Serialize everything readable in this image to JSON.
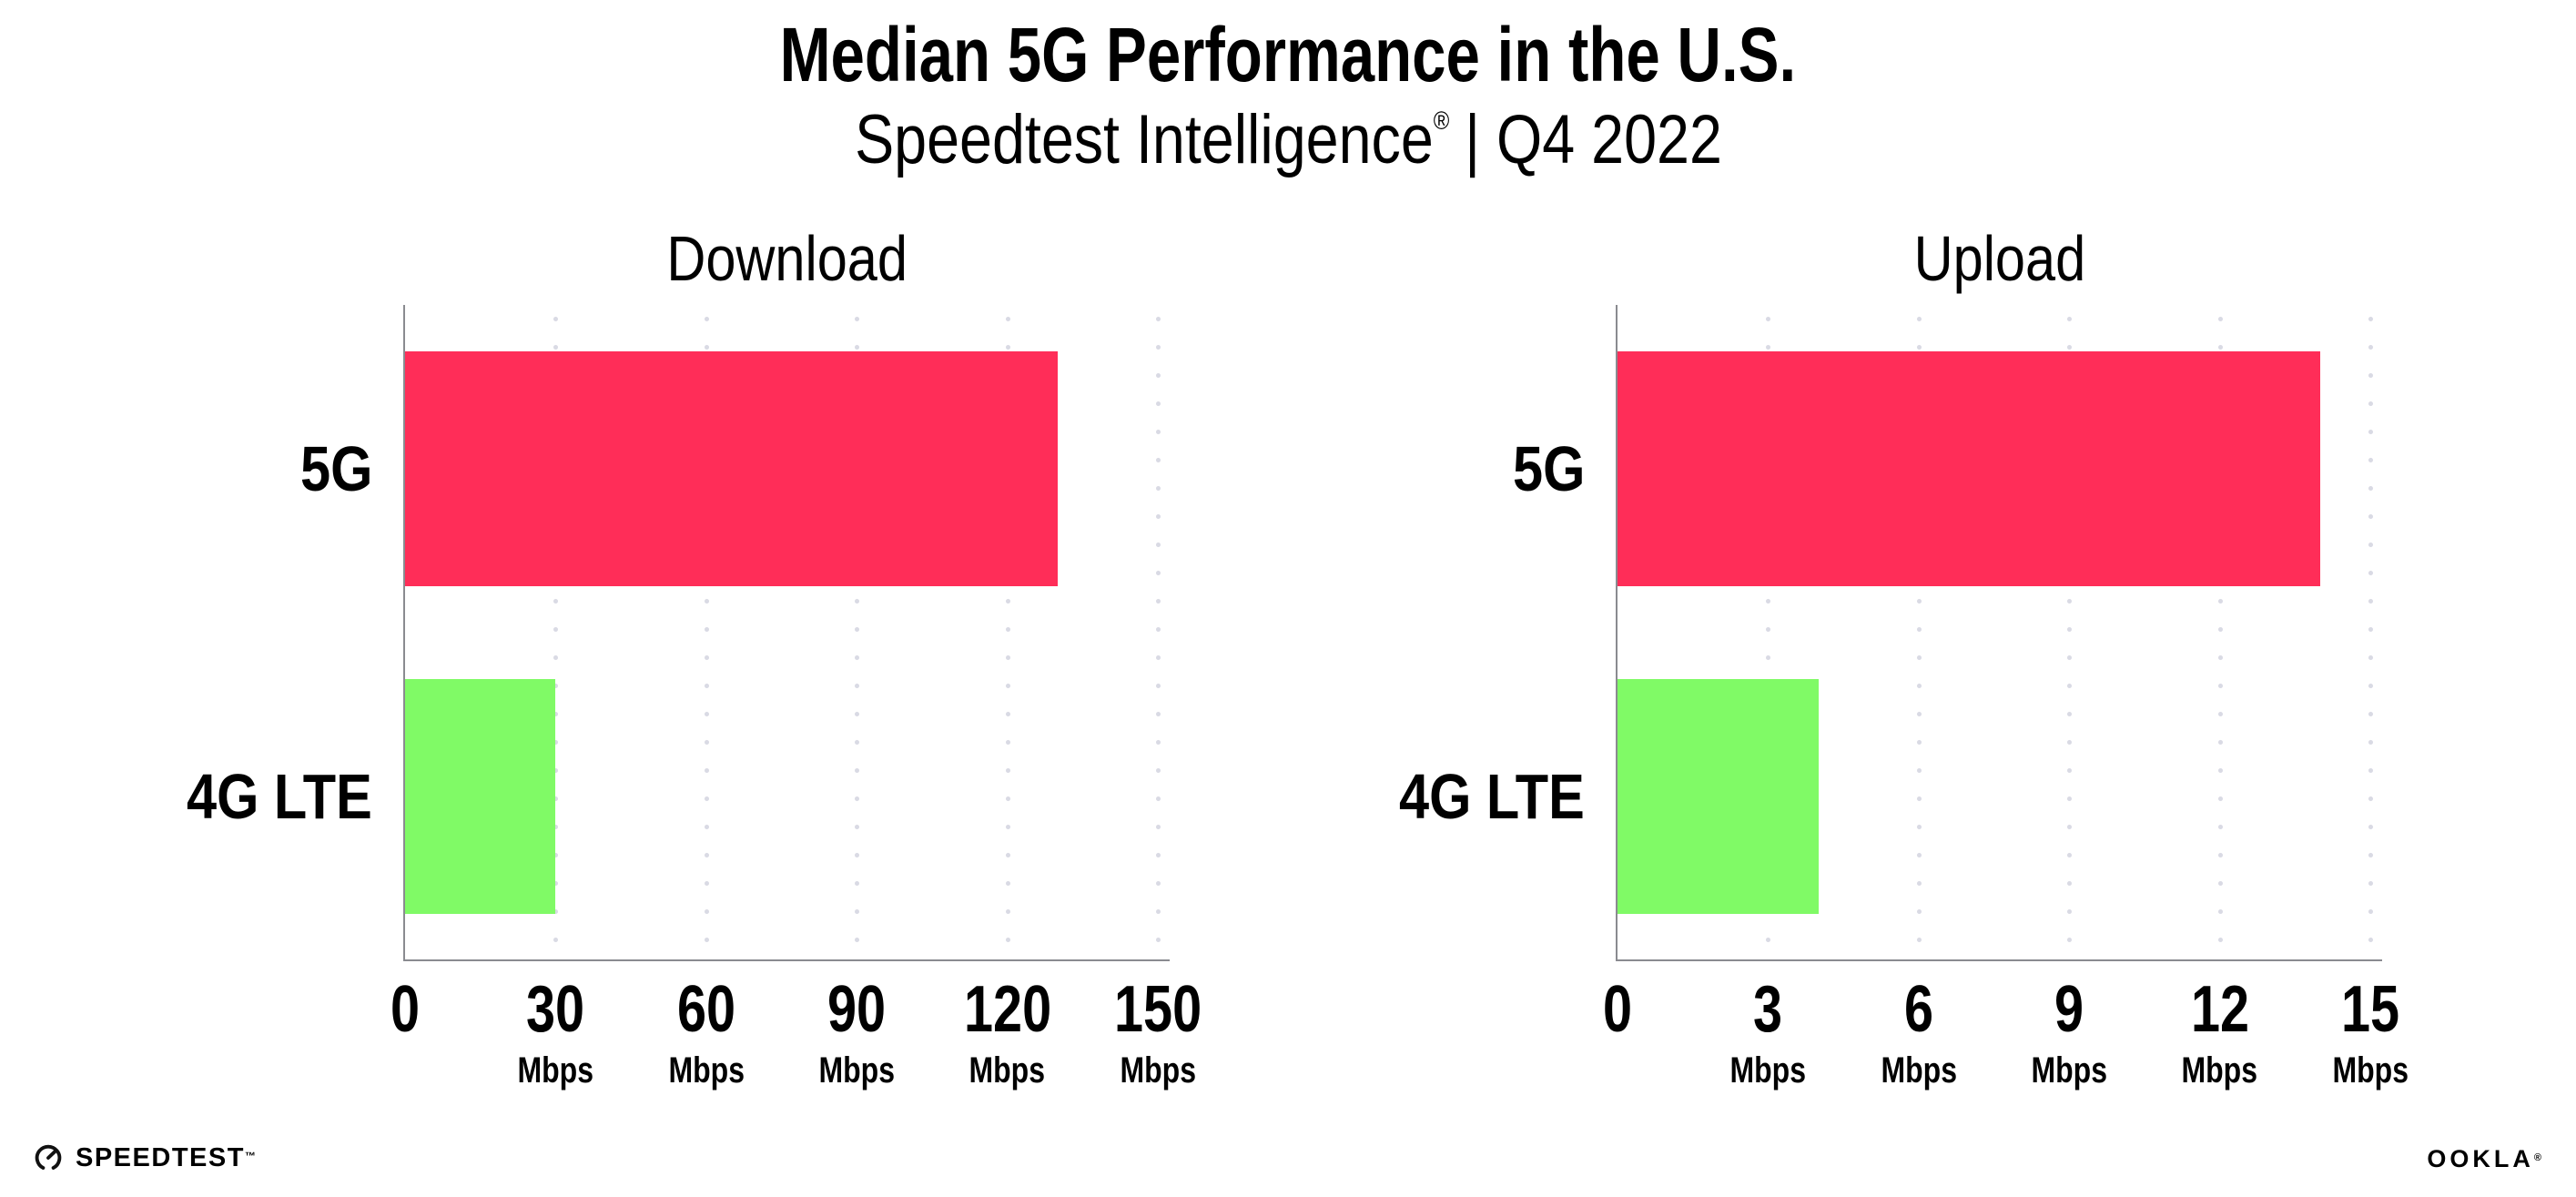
{
  "header": {
    "title": "Median 5G Performance in the U.S.",
    "subtitle_brand": "Speedtest Intelligence",
    "subtitle_reg": "®",
    "subtitle_rest": "| Q4 2022"
  },
  "chart_data": [
    {
      "type": "bar",
      "orientation": "horizontal",
      "title": "Download",
      "categories": [
        "5G",
        "4G LTE"
      ],
      "values": [
        130,
        30
      ],
      "unit": "Mbps",
      "xlim": [
        0,
        150
      ],
      "xticks": [
        0,
        30,
        60,
        90,
        120,
        150
      ],
      "tick_unit_shown_on_zero": false,
      "grid": "dotted-vertical",
      "legend": "none",
      "bar_colors": [
        "#FF2D58",
        "#80FA66"
      ]
    },
    {
      "type": "bar",
      "orientation": "horizontal",
      "title": "Upload",
      "categories": [
        "5G",
        "4G LTE"
      ],
      "values": [
        14,
        4
      ],
      "unit": "Mbps",
      "xlim": [
        0,
        15
      ],
      "xticks": [
        0,
        3,
        6,
        9,
        12,
        15
      ],
      "tick_unit_shown_on_zero": false,
      "grid": "dotted-vertical",
      "legend": "none",
      "bar_colors": [
        "#FF2D58",
        "#80FA66"
      ]
    }
  ],
  "footer": {
    "speedtest_label": "SPEEDTEST",
    "speedtest_tm": "™",
    "speedtest_icon": "speedtest-gauge-icon",
    "ookla_label": "OOKLA",
    "ookla_reg": "®"
  },
  "colors": {
    "bar_5g": "#FF2D58",
    "bar_4g_lte": "#80FA66",
    "axis": "#8A8B90",
    "gridline": "#D9DAE4",
    "text": "#000000",
    "background": "#FFFFFF"
  }
}
